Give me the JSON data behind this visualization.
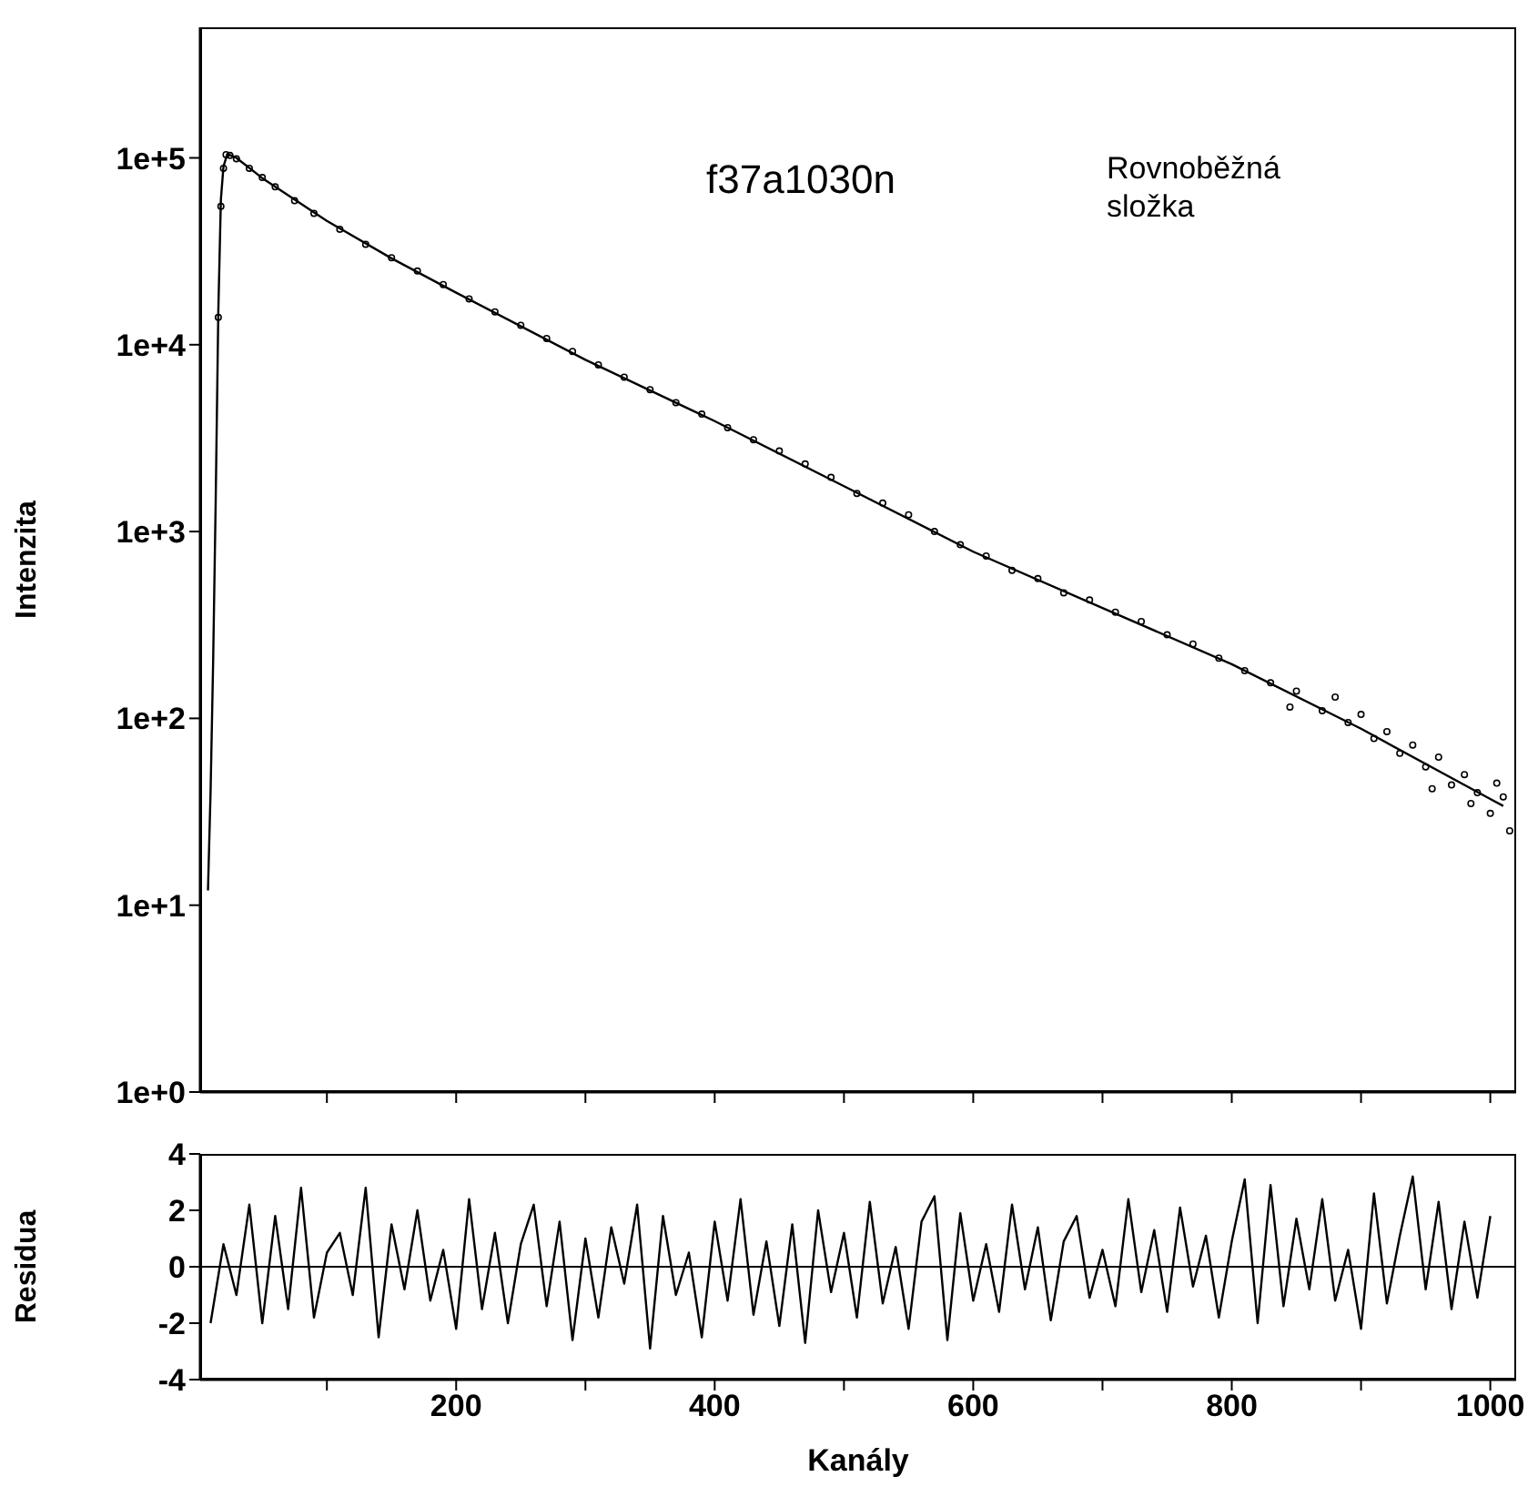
{
  "chart_data": [
    {
      "type": "scatter",
      "ylabel": "Intenzita",
      "annotations": [
        "f37a1030n",
        "Rovnoběžná složka"
      ],
      "log": "y",
      "xlim": [
        2,
        1020
      ],
      "ylim": [
        1,
        500000
      ],
      "xticks": [
        {
          "value": 100,
          "label": null
        },
        {
          "value": 200,
          "label": null
        },
        {
          "value": 300,
          "label": null
        },
        {
          "value": 400,
          "label": null
        },
        {
          "value": 500,
          "label": null
        },
        {
          "value": 600,
          "label": null
        },
        {
          "value": 700,
          "label": null
        },
        {
          "value": 800,
          "label": null
        },
        {
          "value": 900,
          "label": null
        },
        {
          "value": 1000,
          "label": null
        }
      ],
      "yticks": [
        {
          "value": 1,
          "label": "1e+0"
        },
        {
          "value": 10,
          "label": "1e+1"
        },
        {
          "value": 100,
          "label": "1e+2"
        },
        {
          "value": 1000,
          "label": "1e+3"
        },
        {
          "value": 10000,
          "label": "1e+4"
        },
        {
          "value": 100000,
          "label": "1e+5"
        }
      ],
      "tick_labels": "y",
      "series": [
        {
          "type": "scatter",
          "color": "#000000",
          "marker": "circle",
          "x": [
            16,
            18,
            20,
            22,
            25,
            30,
            40,
            50,
            60,
            75,
            90,
            110,
            130,
            150,
            170,
            190,
            210,
            230,
            250,
            270,
            290,
            310,
            330,
            350,
            370,
            390,
            410,
            430,
            450,
            470,
            490,
            510,
            530,
            550,
            570,
            590,
            610,
            630,
            650,
            670,
            690,
            710,
            730,
            750,
            770,
            790,
            810,
            830,
            845,
            850,
            870,
            880,
            890,
            900,
            910,
            920,
            930,
            940,
            950,
            955,
            960,
            970,
            980,
            985,
            990,
            1000,
            1005,
            1010,
            1015
          ],
          "values": [
            14000,
            55000,
            88000,
            104000,
            103000,
            99000,
            88000,
            78500,
            70000,
            59000,
            50500,
            41500,
            34500,
            29200,
            24800,
            21000,
            17600,
            15000,
            12700,
            10800,
            9200,
            7800,
            6700,
            5750,
            4900,
            4250,
            3600,
            3100,
            2700,
            2300,
            1950,
            1600,
            1420,
            1230,
            1000,
            850,
            740,
            620,
            560,
            470,
            430,
            370,
            330,
            280,
            250,
            210,
            180,
            155,
            115,
            140,
            110,
            130,
            95,
            105,
            78,
            85,
            65,
            72,
            55,
            42,
            62,
            44,
            50,
            35,
            40,
            31,
            45,
            38,
            25
          ]
        },
        {
          "type": "line",
          "color": "#000000",
          "marker": "none",
          "x": [
            8,
            10,
            12,
            14,
            16,
            18,
            20,
            23,
            30,
            50,
            100,
            150,
            200,
            300,
            400,
            500,
            600,
            700,
            800,
            900,
            1000,
            1010
          ],
          "values": [
            12,
            40,
            200,
            1500,
            15000,
            60000,
            90000,
            105000,
            100000,
            78000,
            46000,
            29000,
            19000,
            8300,
            3900,
            1750,
            780,
            390,
            195,
            88,
            37,
            34
          ]
        }
      ]
    },
    {
      "type": "line",
      "xlabel": "Kanály",
      "ylabel": "Residua",
      "xlim": [
        2,
        1020
      ],
      "ylim": [
        -4,
        4
      ],
      "xticks": [
        {
          "value": 100,
          "label": null
        },
        200,
        {
          "value": 300,
          "label": null
        },
        400,
        {
          "value": 500,
          "label": null
        },
        600,
        {
          "value": 700,
          "label": null
        },
        800,
        {
          "value": 900,
          "label": null
        },
        1000
      ],
      "yticks": [
        -4,
        -2,
        0,
        2,
        4
      ],
      "ref_lines": [
        {
          "axis": "y",
          "value": 0,
          "color": "#000000"
        }
      ],
      "series": [
        {
          "color": "#000000",
          "x": [
            10,
            20,
            30,
            40,
            50,
            60,
            70,
            80,
            90,
            100,
            110,
            120,
            130,
            140,
            150,
            160,
            170,
            180,
            190,
            200,
            210,
            220,
            230,
            240,
            250,
            260,
            270,
            280,
            290,
            300,
            310,
            320,
            330,
            340,
            350,
            360,
            370,
            380,
            390,
            400,
            410,
            420,
            430,
            440,
            450,
            460,
            470,
            480,
            490,
            500,
            510,
            520,
            530,
            540,
            550,
            560,
            570,
            580,
            590,
            600,
            610,
            620,
            630,
            640,
            650,
            660,
            670,
            680,
            690,
            700,
            710,
            720,
            730,
            740,
            750,
            760,
            770,
            780,
            790,
            800,
            810,
            820,
            830,
            840,
            850,
            860,
            870,
            880,
            890,
            900,
            910,
            920,
            930,
            940,
            950,
            960,
            970,
            980,
            990,
            1000
          ],
          "values": [
            -2,
            0.8,
            -1,
            2.2,
            -2,
            1.8,
            -1.5,
            2.8,
            -1.8,
            0.5,
            1.2,
            -1,
            2.8,
            -2.5,
            1.5,
            -0.8,
            2,
            -1.2,
            0.6,
            -2.2,
            2.4,
            -1.5,
            1.2,
            -2,
            0.8,
            2.2,
            -1.4,
            1.6,
            -2.6,
            1,
            -1.8,
            1.4,
            -0.6,
            2.2,
            -2.9,
            1.8,
            -1,
            0.5,
            -2.5,
            1.6,
            -1.2,
            2.4,
            -1.7,
            0.9,
            -2.1,
            1.5,
            -2.7,
            2,
            -0.9,
            1.2,
            -1.8,
            2.3,
            -1.3,
            0.7,
            -2.2,
            1.6,
            2.5,
            -2.6,
            1.9,
            -1.2,
            0.8,
            -1.6,
            2.2,
            -0.8,
            1.4,
            -1.9,
            0.9,
            1.8,
            -1.1,
            0.6,
            -1.4,
            2.4,
            -0.9,
            1.3,
            -1.6,
            2.1,
            -0.7,
            1.1,
            -1.8,
            0.9,
            3.1,
            -2,
            2.9,
            -1.4,
            1.7,
            -0.8,
            2.4,
            -1.2,
            0.6,
            -2.2,
            2.6,
            -1.3,
            1.1,
            3.2,
            -0.8,
            2.3,
            -1.5,
            1.6,
            -1.1,
            1.8
          ]
        }
      ]
    }
  ]
}
